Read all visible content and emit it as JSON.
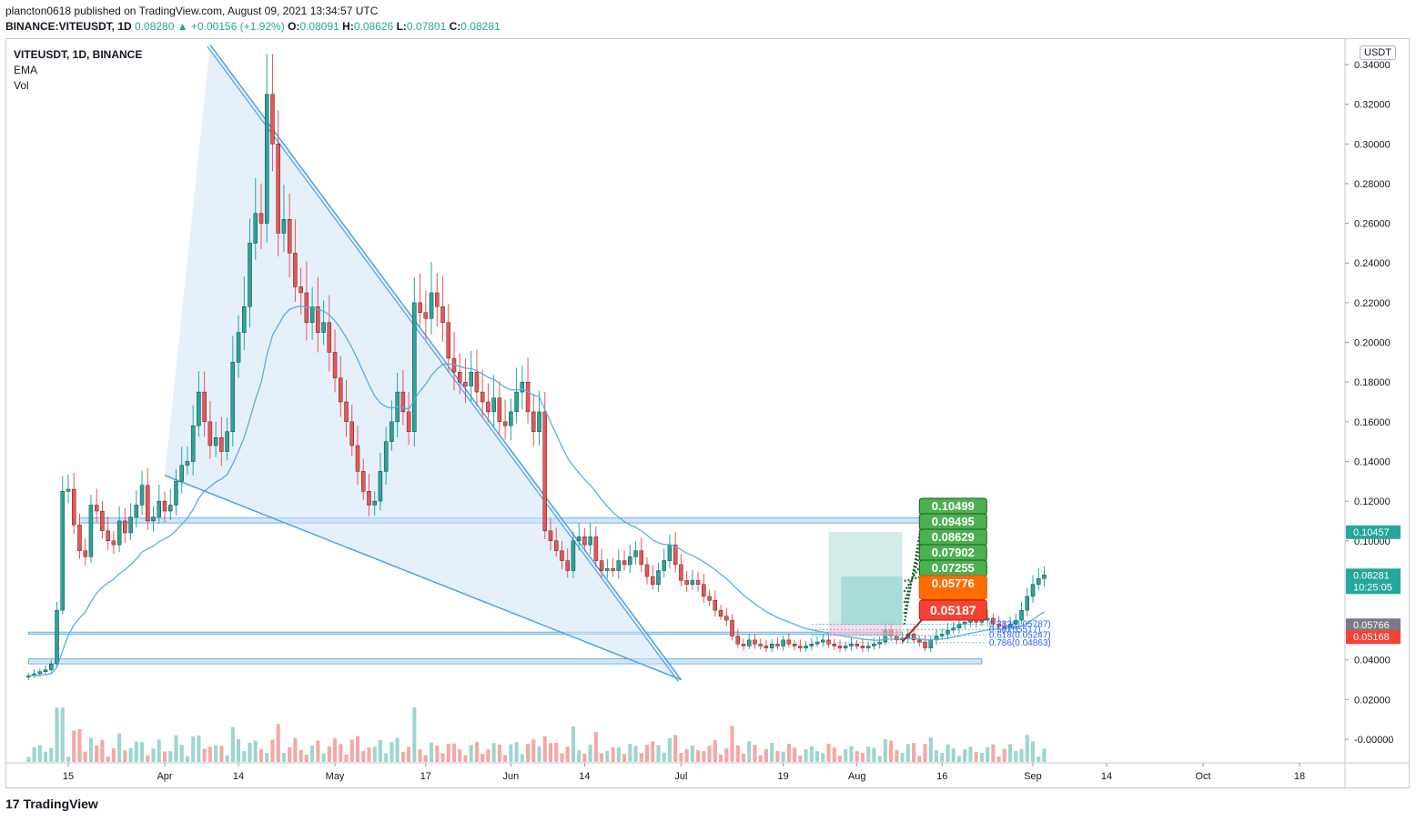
{
  "header": {
    "publisher_line": "plancton0618 published on TradingView.com, August 09, 2021 13:34:57 UTC",
    "symbol": "BINANCE:VITEUSDT, 1D",
    "last": "0.08280",
    "change": "▲ +0.00156 (+1.92%)",
    "o_label": "O:",
    "o_value": "0.08091",
    "h_label": "H:",
    "h_value": "0.08626",
    "l_label": "L:",
    "l_value": "0.07801",
    "c_label": "C:",
    "c_value": "0.08281"
  },
  "legend": {
    "symbol": "VITEUSDT, 1D, BINANCE",
    "ema": "EMA",
    "vol": "Vol"
  },
  "unit_badge": "USDT",
  "footer": {
    "logo_text": "TradingView",
    "logo_mark": "17"
  },
  "colors": {
    "up": "#26a69a",
    "down": "#ef5350",
    "ema": "#5aaee0",
    "pattern": "#4da3e0",
    "zone": "#9fc5f0",
    "target": "#4caf50",
    "entry": "#ff6d00",
    "stop": "#f44336",
    "price_tag": "#26a69a",
    "current_tag": "#787b86"
  },
  "chart_data": {
    "type": "candlestick",
    "ylim": [
      -0.006,
      0.35
    ],
    "y_ticks": [
      "0.34000",
      "0.32000",
      "0.30000",
      "0.28000",
      "0.26000",
      "0.24000",
      "0.22000",
      "0.20000",
      "0.18000",
      "0.16000",
      "0.14000",
      "0.12000",
      "0.10000",
      "0.04000",
      "0.02000",
      "-0.00000"
    ],
    "x_ticks": [
      {
        "label": "15",
        "date": "2021-03-15"
      },
      {
        "label": "Apr",
        "date": "2021-04-01"
      },
      {
        "label": "14",
        "date": "2021-04-14"
      },
      {
        "label": "May",
        "date": "2021-05-01"
      },
      {
        "label": "17",
        "date": "2021-05-17"
      },
      {
        "label": "Jun",
        "date": "2021-06-01"
      },
      {
        "label": "14",
        "date": "2021-06-14"
      },
      {
        "label": "Jul",
        "date": "2021-07-01"
      },
      {
        "label": "19",
        "date": "2021-07-19"
      },
      {
        "label": "Aug",
        "date": "2021-08-01"
      },
      {
        "label": "16",
        "date": "2021-08-16"
      },
      {
        "label": "Sep",
        "date": "2021-09-01"
      },
      {
        "label": "14",
        "date": "2021-09-14"
      },
      {
        "label": "Oct",
        "date": "2021-10-01"
      },
      {
        "label": "18",
        "date": "2021-10-18"
      }
    ],
    "closes": [
      0.032,
      0.033,
      0.034,
      0.035,
      0.038,
      0.065,
      0.125,
      0.126,
      0.108,
      0.095,
      0.092,
      0.118,
      0.115,
      0.105,
      0.1,
      0.098,
      0.11,
      0.104,
      0.112,
      0.118,
      0.128,
      0.11,
      0.112,
      0.12,
      0.115,
      0.118,
      0.13,
      0.138,
      0.14,
      0.158,
      0.175,
      0.16,
      0.148,
      0.152,
      0.145,
      0.155,
      0.19,
      0.205,
      0.218,
      0.25,
      0.265,
      0.26,
      0.325,
      0.3,
      0.255,
      0.262,
      0.245,
      0.228,
      0.225,
      0.21,
      0.218,
      0.205,
      0.21,
      0.195,
      0.182,
      0.17,
      0.16,
      0.148,
      0.135,
      0.125,
      0.118,
      0.12,
      0.135,
      0.15,
      0.16,
      0.175,
      0.165,
      0.155,
      0.22,
      0.215,
      0.212,
      0.225,
      0.218,
      0.21,
      0.192,
      0.185,
      0.18,
      0.178,
      0.185,
      0.175,
      0.17,
      0.165,
      0.172,
      0.16,
      0.158,
      0.165,
      0.175,
      0.18,
      0.165,
      0.155,
      0.165,
      0.105,
      0.1,
      0.095,
      0.09,
      0.085,
      0.1,
      0.102,
      0.098,
      0.102,
      0.09,
      0.085,
      0.086,
      0.085,
      0.09,
      0.088,
      0.092,
      0.095,
      0.088,
      0.082,
      0.078,
      0.085,
      0.09,
      0.098,
      0.088,
      0.08,
      0.078,
      0.08,
      0.078,
      0.072,
      0.07,
      0.065,
      0.062,
      0.06,
      0.052,
      0.048,
      0.047,
      0.05,
      0.048,
      0.047,
      0.046,
      0.048,
      0.047,
      0.05,
      0.048,
      0.047,
      0.046,
      0.047,
      0.048,
      0.049,
      0.05,
      0.048,
      0.047,
      0.046,
      0.047,
      0.048,
      0.047,
      0.046,
      0.047,
      0.048,
      0.049,
      0.055,
      0.052,
      0.05,
      0.051,
      0.053,
      0.05,
      0.049,
      0.046,
      0.05,
      0.052,
      0.053,
      0.055,
      0.056,
      0.058,
      0.059,
      0.06,
      0.059,
      0.06,
      0.061,
      0.058,
      0.057,
      0.056,
      0.058,
      0.06,
      0.065,
      0.072,
      0.078,
      0.081,
      0.0828
    ],
    "ema_period": 20,
    "pattern": {
      "name": "falling wedge",
      "upper_line": [
        [
          "2021-04-09",
          0.35
        ],
        [
          "2021-07-01",
          0.03
        ]
      ],
      "lower_line": [
        [
          "2021-04-01",
          0.133
        ],
        [
          "2021-07-01",
          0.03
        ]
      ]
    },
    "zones": [
      {
        "from": 0.109,
        "to": 0.1115,
        "start": "2021-03-17",
        "end": "2021-08-23"
      },
      {
        "from": 0.053,
        "to": 0.054,
        "start": "2021-03-08",
        "end": "2021-08-09"
      },
      {
        "from": 0.038,
        "to": 0.0405,
        "start": "2021-03-08",
        "end": "2021-08-23"
      }
    ],
    "targets": [
      "0.10499",
      "0.09495",
      "0.08629",
      "0.07902",
      "0.07255"
    ],
    "entry_labels": [
      "0.05776"
    ],
    "stop_label": "0.05187",
    "fib_levels": [
      {
        "label": "0.382(0.05787)",
        "value": 0.05787
      },
      {
        "label": "0.5(0.05517)",
        "value": 0.05517
      },
      {
        "label": "0.618(0.05247)",
        "value": 0.05247
      },
      {
        "label": "0.786(0.04863)",
        "value": 0.04863
      }
    ],
    "price_tags": [
      {
        "text": "0.10457",
        "value": 0.10457,
        "color": "#26a69a"
      },
      {
        "text": "0.08281",
        "value": 0.08281,
        "color": "#26a69a",
        "sub": "10:25:05"
      },
      {
        "text": "0.05766",
        "value": 0.05766,
        "color": "#787b86"
      },
      {
        "text": "0.05168",
        "value": 0.05168,
        "color": "#f44336"
      }
    ]
  }
}
